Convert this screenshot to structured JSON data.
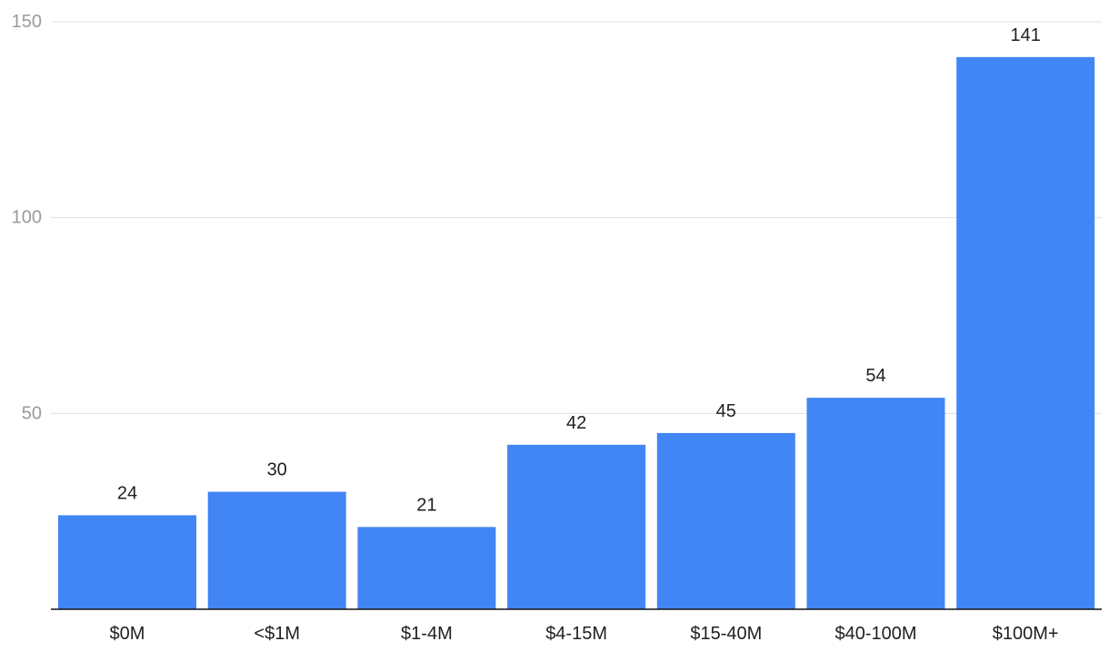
{
  "chart_data": {
    "type": "bar",
    "categories": [
      "$0M",
      "<$1M",
      "$1-4M",
      "$4-15M",
      "$15-40M",
      "$40-100M",
      "$100M+"
    ],
    "values": [
      24,
      30,
      21,
      42,
      45,
      54,
      141
    ],
    "data_labels": [
      "24",
      "30",
      "21",
      "42",
      "45",
      "54",
      "141"
    ],
    "y_ticks": [
      50,
      100,
      150
    ],
    "y_tick_labels": [
      "50",
      "100",
      "150"
    ],
    "ylim": [
      0,
      150
    ],
    "grid": true,
    "legend": "none",
    "title": "",
    "xlabel": "",
    "ylabel": "",
    "colors": {
      "bar": "#4285f4",
      "grid": "#e0e0e0",
      "baseline": "#111111",
      "tick_text": "#9a9a9a",
      "label_text": "#1f1f1f"
    }
  }
}
